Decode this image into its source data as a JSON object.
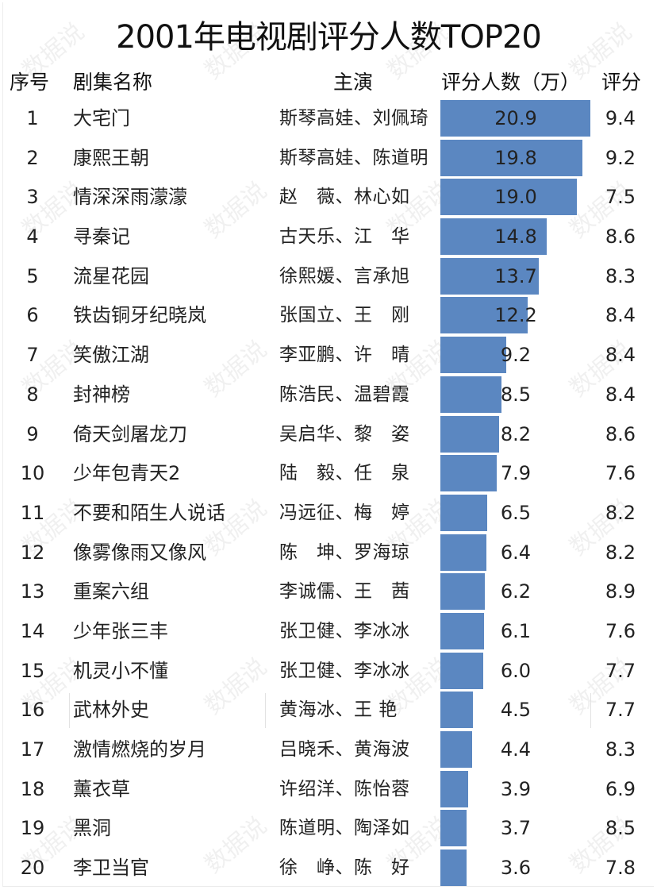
{
  "title": "2001年电视剧评分人数TOP20",
  "headers": {
    "rank": "序号",
    "name": "剧集名称",
    "actors": "主演",
    "count": "评分人数（万）",
    "score": "评分"
  },
  "watermark": "数据说",
  "colors": {
    "bar": "#5b87c1",
    "text": "#222222"
  },
  "rows": [
    {
      "rank": "1",
      "name": "大宅门",
      "actors": "斯琴高娃、刘佩琦",
      "count": "20.9",
      "score": "9.4"
    },
    {
      "rank": "2",
      "name": "康熙王朝",
      "actors": "斯琴高娃、陈道明",
      "count": "19.8",
      "score": "9.2"
    },
    {
      "rank": "3",
      "name": "情深深雨濛濛",
      "actors": "赵　薇、林心如",
      "count": "19.0",
      "score": "7.5"
    },
    {
      "rank": "4",
      "name": "寻秦记",
      "actors": "古天乐、江　华",
      "count": "14.8",
      "score": "8.6"
    },
    {
      "rank": "5",
      "name": "流星花园",
      "actors": "徐熙媛、言承旭",
      "count": "13.7",
      "score": "8.3"
    },
    {
      "rank": "6",
      "name": "铁齿铜牙纪晓岚",
      "actors": "张国立、王　刚",
      "count": "12.2",
      "score": "8.4"
    },
    {
      "rank": "7",
      "name": "笑傲江湖",
      "actors": "李亚鹏、许　晴",
      "count": "9.2",
      "score": "8.4"
    },
    {
      "rank": "8",
      "name": "封神榜",
      "actors": "陈浩民、温碧霞",
      "count": "8.5",
      "score": "8.4"
    },
    {
      "rank": "9",
      "name": "倚天剑屠龙刀",
      "actors": "吴启华、黎　姿",
      "count": "8.2",
      "score": "8.6"
    },
    {
      "rank": "10",
      "name": "少年包青天2",
      "actors": "陆　毅、任　泉",
      "count": "7.9",
      "score": "7.6"
    },
    {
      "rank": "11",
      "name": "不要和陌生人说话",
      "actors": "冯远征、梅　婷",
      "count": "6.5",
      "score": "8.2"
    },
    {
      "rank": "12",
      "name": "像雾像雨又像风",
      "actors": "陈　坤、罗海琼",
      "count": "6.4",
      "score": "8.2"
    },
    {
      "rank": "13",
      "name": "重案六组",
      "actors": "李诚儒、王　茜",
      "count": "6.2",
      "score": "8.9"
    },
    {
      "rank": "14",
      "name": "少年张三丰",
      "actors": "张卫健、李冰冰",
      "count": "6.1",
      "score": "7.6"
    },
    {
      "rank": "15",
      "name": "机灵小不懂",
      "actors": "张卫健、李冰冰",
      "count": "6.0",
      "score": "7.7"
    },
    {
      "rank": "16",
      "name": "武林外史",
      "actors": "黄海冰、王 艳",
      "count": "4.5",
      "score": "7.7"
    },
    {
      "rank": "17",
      "name": "激情燃烧的岁月",
      "actors": "吕晓禾、黄海波",
      "count": "4.4",
      "score": "8.3"
    },
    {
      "rank": "18",
      "name": "薰衣草",
      "actors": "许绍洋、陈怡蓉",
      "count": "3.9",
      "score": "6.9"
    },
    {
      "rank": "19",
      "name": "黑洞",
      "actors": "陈道明、陶泽如",
      "count": "3.7",
      "score": "8.5"
    },
    {
      "rank": "20",
      "name": "李卫当官",
      "actors": "徐　峥、陈　好",
      "count": "3.6",
      "score": "7.8"
    }
  ],
  "chart_data": {
    "type": "bar",
    "orientation": "horizontal",
    "title": "2001年电视剧评分人数TOP20",
    "xlabel": "评分人数（万）",
    "ylabel": "剧集名称",
    "categories": [
      "大宅门",
      "康熙王朝",
      "情深深雨濛濛",
      "寻秦记",
      "流星花园",
      "铁齿铜牙纪晓岚",
      "笑傲江湖",
      "封神榜",
      "倚天剑屠龙刀",
      "少年包青天2",
      "不要和陌生人说话",
      "像雾像雨又像风",
      "重案六组",
      "少年张三丰",
      "机灵小不懂",
      "武林外史",
      "激情燃烧的岁月",
      "薰衣草",
      "黑洞",
      "李卫当官"
    ],
    "series": [
      {
        "name": "评分人数（万）",
        "values": [
          20.9,
          19.8,
          19.0,
          14.8,
          13.7,
          12.2,
          9.2,
          8.5,
          8.2,
          7.9,
          6.5,
          6.4,
          6.2,
          6.1,
          6.0,
          4.5,
          4.4,
          3.9,
          3.7,
          3.6
        ]
      },
      {
        "name": "评分",
        "values": [
          9.4,
          9.2,
          7.5,
          8.6,
          8.3,
          8.4,
          8.4,
          8.4,
          8.6,
          7.6,
          8.2,
          8.2,
          8.9,
          7.6,
          7.7,
          7.7,
          8.3,
          6.9,
          8.5,
          7.8
        ]
      }
    ],
    "grid": false,
    "legend": "none",
    "max_value": 20.9
  }
}
